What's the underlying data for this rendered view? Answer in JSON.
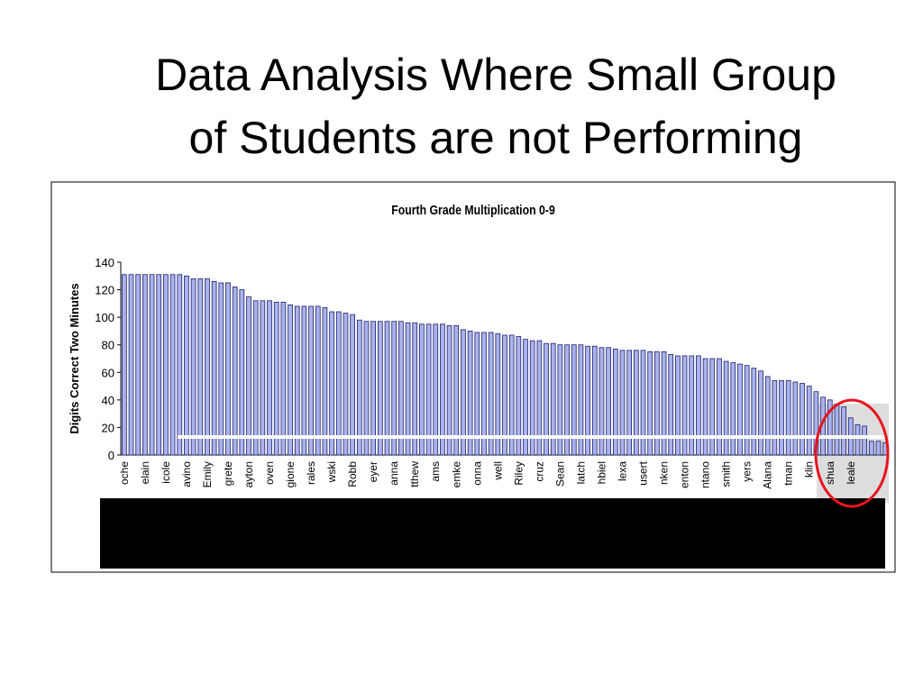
{
  "slide_title": [
    "Data Analysis Where Small Group",
    "of Students are not Performing"
  ],
  "chart_data": {
    "type": "bar",
    "title": "Fourth Grade Multiplication 0-9",
    "y_label": "Digits Correct Two Minutes",
    "categories": [
      "oche",
      null,
      null,
      "elain",
      null,
      null,
      "icole",
      null,
      null,
      "avino",
      null,
      null,
      "Emily",
      null,
      null,
      "grete",
      null,
      null,
      "ayton",
      null,
      null,
      "oven",
      null,
      null,
      "gione",
      null,
      null,
      "rales",
      null,
      null,
      "wski",
      null,
      null,
      "Robb",
      null,
      null,
      "eyer",
      null,
      null,
      "anna",
      null,
      null,
      "tthew",
      null,
      null,
      "ams",
      null,
      null,
      "emke",
      null,
      null,
      "onna",
      null,
      null,
      "well",
      null,
      null,
      "Riley",
      null,
      null,
      "cruz",
      null,
      null,
      "Sean",
      null,
      null,
      "latch",
      null,
      null,
      "hbiel",
      null,
      null,
      "lexa",
      null,
      null,
      "usert",
      null,
      null,
      "nken",
      null,
      null,
      "enton",
      null,
      null,
      "ntano",
      null,
      null,
      "smith",
      null,
      null,
      "yers",
      null,
      null,
      "Alana",
      null,
      null,
      "tman",
      null,
      null,
      "klin",
      null,
      null,
      "shua",
      null,
      null,
      "leale",
      null,
      null,
      null,
      null,
      null
    ],
    "values": [
      131,
      131,
      131,
      131,
      131,
      131,
      131,
      131,
      131,
      130,
      128,
      128,
      128,
      126,
      125,
      125,
      122,
      120,
      115,
      112,
      112,
      112,
      111,
      111,
      109,
      108,
      108,
      108,
      108,
      107,
      104,
      104,
      103,
      102,
      98,
      97,
      97,
      97,
      97,
      97,
      97,
      96,
      96,
      95,
      95,
      95,
      95,
      94,
      94,
      91,
      90,
      89,
      89,
      89,
      88,
      87,
      87,
      86,
      84,
      83,
      83,
      81,
      81,
      80,
      80,
      80,
      80,
      79,
      79,
      78,
      78,
      77,
      76,
      76,
      76,
      76,
      75,
      75,
      75,
      73,
      72,
      72,
      72,
      72,
      70,
      70,
      70,
      68,
      67,
      66,
      65,
      63,
      61,
      57,
      54,
      54,
      54,
      53,
      52,
      50,
      46,
      42,
      40,
      37,
      35,
      27,
      22,
      21,
      10,
      10,
      9
    ],
    "color": "#a9b3ec",
    "ylim": [
      0,
      140
    ],
    "yticks": [
      0,
      20,
      40,
      60,
      80,
      100,
      120,
      140
    ]
  }
}
